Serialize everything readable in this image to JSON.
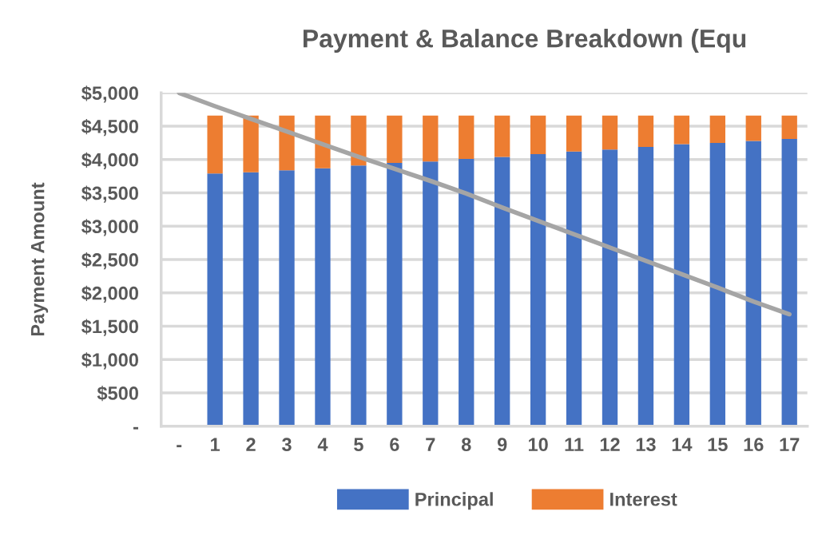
{
  "chart_data": {
    "type": "bar",
    "title": "Payment & Balance Breakdown (Equ",
    "ylabel": "Payment Amount",
    "categories": [
      "-",
      "1",
      "2",
      "3",
      "4",
      "5",
      "6",
      "7",
      "8",
      "9",
      "10",
      "11",
      "12",
      "13",
      "14",
      "15",
      "16",
      "17"
    ],
    "stacked": true,
    "series": [
      {
        "name": "Principal",
        "color": "#4472c4",
        "values": [
          null,
          3790,
          3810,
          3840,
          3870,
          3910,
          3950,
          3970,
          4010,
          4040,
          4080,
          4120,
          4150,
          4190,
          4230,
          4250,
          4280,
          4310
        ]
      },
      {
        "name": "Interest",
        "color": "#ed7d31",
        "values": [
          null,
          870,
          850,
          820,
          790,
          750,
          710,
          690,
          650,
          620,
          580,
          540,
          510,
          470,
          430,
          410,
          380,
          350
        ]
      },
      {
        "type": "line",
        "color": "#a5a5a5",
        "values": [
          5000,
          4800,
          4610,
          4420,
          4230,
          4040,
          3860,
          3680,
          3490,
          3280,
          3080,
          2880,
          2680,
          2480,
          2280,
          2080,
          1870,
          1680
        ]
      }
    ],
    "ylim": [
      0,
      5000
    ],
    "yticks": [
      {
        "value": 0,
        "label": "-"
      },
      {
        "value": 500,
        "label": "$500"
      },
      {
        "value": 1000,
        "label": "$1,000"
      },
      {
        "value": 1500,
        "label": "$1,500"
      },
      {
        "value": 2000,
        "label": "$2,000"
      },
      {
        "value": 2500,
        "label": "$2,500"
      },
      {
        "value": 3000,
        "label": "$3,000"
      },
      {
        "value": 3500,
        "label": "$3,500"
      },
      {
        "value": 4000,
        "label": "$4,000"
      },
      {
        "value": 4500,
        "label": "$4,500"
      },
      {
        "value": 5000,
        "label": "$5,000"
      }
    ],
    "grid": "y",
    "legend": "bottom"
  }
}
